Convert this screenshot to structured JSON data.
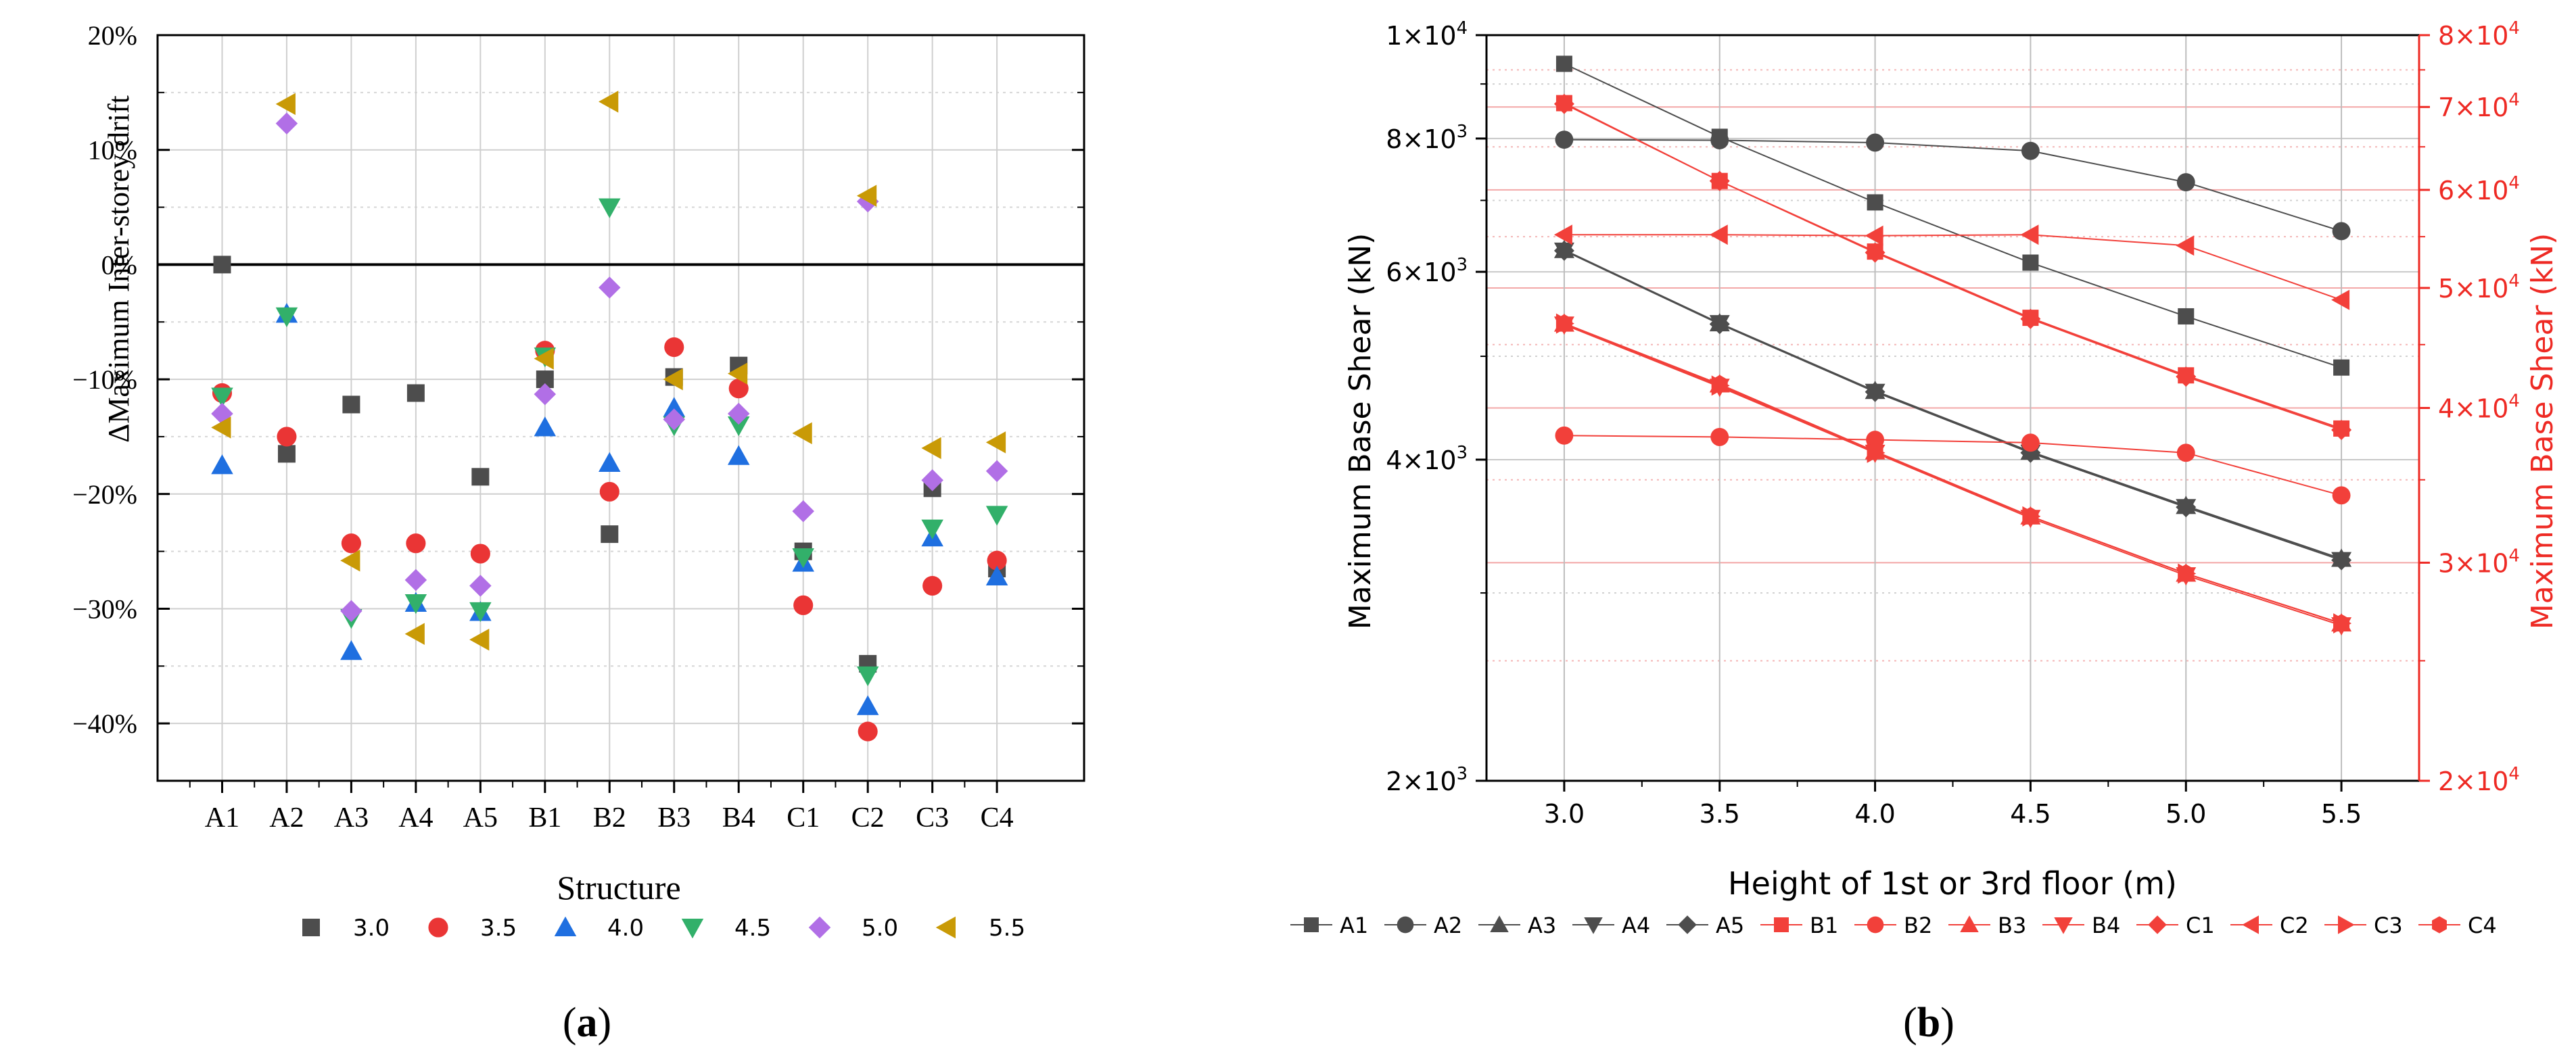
{
  "colors": {
    "c30": "#4d4d4d",
    "c35": "#ea3535",
    "c40": "#1f6fe0",
    "c45": "#32b06a",
    "c50": "#b16fe6",
    "c55": "#c99a06",
    "black_series": "#4d4d4d",
    "red_series": "#f2403a",
    "grid": "#c8c8c8",
    "red_grid": "#f7b8b8"
  },
  "chart_data": [
    {
      "type": "scatter",
      "panel_label": "a",
      "ylabel": "ΔMaximum Inter-storey drift",
      "xlabel": "Structure",
      "ylim": [
        -45,
        20
      ],
      "yticks": [
        20,
        10,
        0,
        -10,
        -20,
        -30,
        -40
      ],
      "ytick_labels": [
        "20%",
        "10%",
        "0%",
        "−10%",
        "−20%",
        "−30%",
        "−40%"
      ],
      "categories": [
        "A1",
        "A2",
        "A3",
        "A4",
        "A5",
        "B1",
        "B2",
        "B3",
        "B4",
        "C1",
        "C2",
        "C3",
        "C4"
      ],
      "series": [
        {
          "name": "3.0",
          "marker": "square",
          "color_key": "c30",
          "values": [
            0,
            -16.5,
            -12.2,
            -11.2,
            -18.5,
            -10,
            -23.5,
            -9.8,
            -8.8,
            -25,
            -34.8,
            -19.5,
            -26.5
          ]
        },
        {
          "name": "3.5",
          "marker": "circle",
          "color_key": "c35",
          "values": [
            -11.2,
            -15,
            -24.3,
            -24.3,
            -25.2,
            -7.5,
            -19.8,
            -7.2,
            -10.8,
            -29.7,
            -40.7,
            -28,
            -25.8
          ]
        },
        {
          "name": "4.0",
          "marker": "triangle-up",
          "color_key": "c40",
          "values": [
            -17.5,
            -4.3,
            -33.7,
            -29.5,
            -30.3,
            -14.2,
            -17.3,
            -12.5,
            -16.7,
            -26,
            -38.5,
            -23.8,
            -27.2
          ]
        },
        {
          "name": "4.5",
          "marker": "triangle-down",
          "color_key": "c45",
          "values": [
            -11.5,
            -4.5,
            -30.8,
            -29.5,
            -30.2,
            -8,
            5,
            -14,
            -14,
            -25.5,
            -35.8,
            -23,
            -21.8
          ]
        },
        {
          "name": "5.0",
          "marker": "diamond",
          "color_key": "c50",
          "values": [
            -13,
            12.3,
            -30.2,
            -27.5,
            -28,
            -11.3,
            -2,
            -13.5,
            -13,
            -21.5,
            5.5,
            -18.8,
            -18
          ]
        },
        {
          "name": "5.5",
          "marker": "triangle-left",
          "color_key": "c55",
          "values": [
            -14.2,
            14,
            -25.8,
            -32.2,
            -32.7,
            -8.2,
            14.2,
            -10,
            -9.5,
            -14.7,
            6,
            -16,
            -15.5
          ]
        }
      ]
    },
    {
      "type": "line",
      "panel_label": "b",
      "xlabel": "Height of 1st or 3rd floor (m)",
      "ylabel": "Maximum Base Shear (kN)",
      "ylabel_right": "Maximum Base Shear (kN)",
      "x": [
        3.0,
        3.5,
        4.0,
        4.5,
        5.0,
        5.5
      ],
      "x_tick_labels": [
        "3.0",
        "3.5",
        "4.0",
        "4.5",
        "5.0",
        "5.5"
      ],
      "xlim": [
        2.75,
        5.75
      ],
      "y_left_log": true,
      "ylim_left": [
        2000,
        10000
      ],
      "yticks_left": [
        {
          "value": 2000,
          "mant": "2×10",
          "exp": "3"
        },
        {
          "value": 4000,
          "mant": "4×10",
          "exp": "3"
        },
        {
          "value": 6000,
          "mant": "6×10",
          "exp": "3"
        },
        {
          "value": 8000,
          "mant": "8×10",
          "exp": "3"
        },
        {
          "value": 10000,
          "mant": "1×10",
          "exp": "4"
        }
      ],
      "y_right_log": true,
      "ylim_right": [
        20000,
        80000
      ],
      "yticks_right": [
        {
          "value": 20000,
          "mant": "2×10",
          "exp": "4"
        },
        {
          "value": 30000,
          "mant": "3×10",
          "exp": "4"
        },
        {
          "value": 40000,
          "mant": "4×10",
          "exp": "4"
        },
        {
          "value": 50000,
          "mant": "5×10",
          "exp": "4"
        },
        {
          "value": 60000,
          "mant": "6×10",
          "exp": "4"
        },
        {
          "value": 70000,
          "mant": "7×10",
          "exp": "4"
        },
        {
          "value": 80000,
          "mant": "8×10",
          "exp": "4"
        }
      ],
      "series": [
        {
          "name": "A1",
          "axis": "left",
          "color_key": "black_series",
          "marker": "square",
          "values": [
            9400,
            8030,
            6970,
            6120,
            5450,
            4880
          ]
        },
        {
          "name": "A2",
          "axis": "left",
          "color_key": "black_series",
          "marker": "circle",
          "values": [
            7980,
            7970,
            7930,
            7790,
            7280,
            6550
          ]
        },
        {
          "name": "A3",
          "axis": "left",
          "color_key": "black_series",
          "marker": "triangle-up",
          "values": [
            6290,
            5370,
            4640,
            4070,
            3620,
            3230
          ]
        },
        {
          "name": "A4",
          "axis": "left",
          "color_key": "black_series",
          "marker": "triangle-down",
          "values": [
            6280,
            5370,
            4630,
            4060,
            3610,
            3220
          ]
        },
        {
          "name": "A5",
          "axis": "left",
          "color_key": "black_series",
          "marker": "diamond",
          "values": [
            6280,
            5360,
            4630,
            4060,
            3610,
            3220
          ]
        },
        {
          "name": "B1",
          "axis": "right",
          "color_key": "red_series",
          "marker": "square",
          "values": [
            70500,
            61000,
            53500,
            47300,
            42500,
            38500
          ]
        },
        {
          "name": "B2",
          "axis": "right",
          "color_key": "red_series",
          "marker": "circle",
          "values": [
            38000,
            37900,
            37700,
            37500,
            36800,
            34000
          ]
        },
        {
          "name": "B3",
          "axis": "right",
          "color_key": "red_series",
          "marker": "triangle-up",
          "values": [
            46800,
            41800,
            36900,
            32700,
            29400,
            26800
          ]
        },
        {
          "name": "B4",
          "axis": "right",
          "color_key": "red_series",
          "marker": "triangle-down",
          "values": [
            46700,
            41600,
            36800,
            32600,
            29300,
            26700
          ]
        },
        {
          "name": "C1",
          "axis": "right",
          "color_key": "red_series",
          "marker": "diamond",
          "values": [
            70400,
            61000,
            53400,
            47200,
            42400,
            38400
          ]
        },
        {
          "name": "C2",
          "axis": "right",
          "color_key": "red_series",
          "marker": "triangle-left",
          "values": [
            55200,
            55200,
            55100,
            55200,
            54100,
            48900
          ]
        },
        {
          "name": "C3",
          "axis": "right",
          "color_key": "red_series",
          "marker": "triangle-right",
          "values": [
            46800,
            41700,
            36800,
            32700,
            29400,
            26800
          ]
        },
        {
          "name": "C4",
          "axis": "right",
          "color_key": "red_series",
          "marker": "hexagon",
          "values": [
            46800,
            41800,
            36900,
            32700,
            29400,
            26800
          ]
        }
      ]
    }
  ]
}
